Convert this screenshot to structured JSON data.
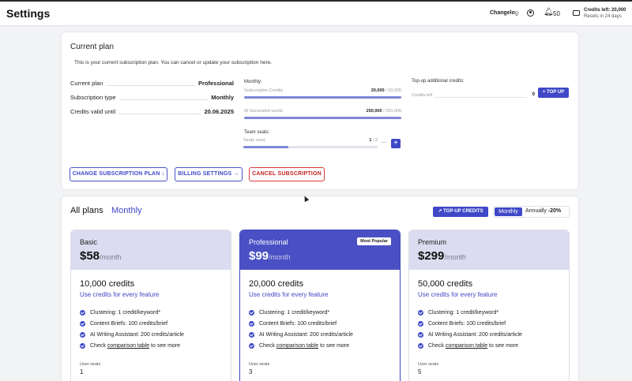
{
  "header": {
    "title": "Settings",
    "changelog": "Changelog",
    "notifications_count": "50",
    "credits_left": "Credits left: 20,000",
    "resets": "Resets in 24 days",
    "icons": [
      "user-icon",
      "bell-icon",
      "wallet-icon"
    ]
  },
  "current_plan": {
    "title": "Current plan",
    "description": "This is your current subscription plan. You can cancel or update your subscription here.",
    "rows": [
      {
        "label": "Current plan",
        "value": "Professional"
      },
      {
        "label": "Subscription type",
        "value": "Monthly"
      },
      {
        "label": "Credits valid until",
        "value": "20.06.2025"
      }
    ],
    "monthly_label": "Monthly:",
    "usage": [
      {
        "label": "Subscription Credits",
        "used": "20,000",
        "total": "/ 20,000",
        "fraction": 1.0
      },
      {
        "label": "AI Generated words",
        "used": "250,000",
        "total": "/ 250,000",
        "fraction": 1.0
      }
    ],
    "team_seats_label": "Team seats:",
    "seats": {
      "label": "Seats used",
      "used": "1",
      "total": "/ 3",
      "fraction": 0.333,
      "minus": "—",
      "plus": "+"
    },
    "topup": {
      "label": "Top-up additional credits:",
      "credits_left_label": "Credits left",
      "credits_left_value": "0",
      "button": "+ TOP UP"
    },
    "buttons": {
      "change": "CHANGE SUBSCRIPTION PLAN ↓",
      "billing": "BILLING SETTINGS →",
      "cancel": "CANCEL SUBSCRIPTION"
    }
  },
  "all_plans": {
    "title": "All plans",
    "period": "Monthly",
    "topup_button": "↗ TOP-UP CREDITS",
    "toggle": {
      "monthly": "Monthly",
      "annually": "Annually",
      "discount": "-20%"
    },
    "plans": [
      {
        "name": "Basic",
        "price": "$58",
        "per": "/month",
        "badge": "",
        "credits": "10,000 credits",
        "use": "Use credits for every feature",
        "features": [
          "Clustering: 1 credit/keyword*",
          "Content Briefs: 100 credits/brief",
          "AI Writing Assistant: 200 credits/article"
        ],
        "check_prefix": "Check ",
        "check_link": "comparison table",
        "check_suffix": " to see more",
        "seats_label": "User seats",
        "seats_value": "1"
      },
      {
        "name": "Professional",
        "price": "$99",
        "per": "/month",
        "badge": "Most Popular",
        "credits": "20,000 credits",
        "use": "Use credits for every feature",
        "features": [
          "Clustering: 1 credit/keyword*",
          "Content Briefs: 100 credits/brief",
          "AI Writing Assistant: 200 credits/article"
        ],
        "check_prefix": "Check ",
        "check_link": "comparison table",
        "check_suffix": " to see more",
        "seats_label": "User seats",
        "seats_value": "3"
      },
      {
        "name": "Premium",
        "price": "$299",
        "per": "/month",
        "badge": "",
        "credits": "50,000 credits",
        "use": "Use credits for every feature",
        "features": [
          "Clustering: 1 credit/keyword*",
          "Content Briefs: 100 credits/brief",
          "AI Writing Assistant: 200 credits/article"
        ],
        "check_prefix": "Check ",
        "check_link": "comparison table",
        "check_suffix": " to see more",
        "seats_label": "User seats",
        "seats_value": "5"
      }
    ]
  },
  "colors": {
    "accent": "#3f48c7",
    "danger": "#c42323",
    "plan_head": "#dcdcf0"
  }
}
